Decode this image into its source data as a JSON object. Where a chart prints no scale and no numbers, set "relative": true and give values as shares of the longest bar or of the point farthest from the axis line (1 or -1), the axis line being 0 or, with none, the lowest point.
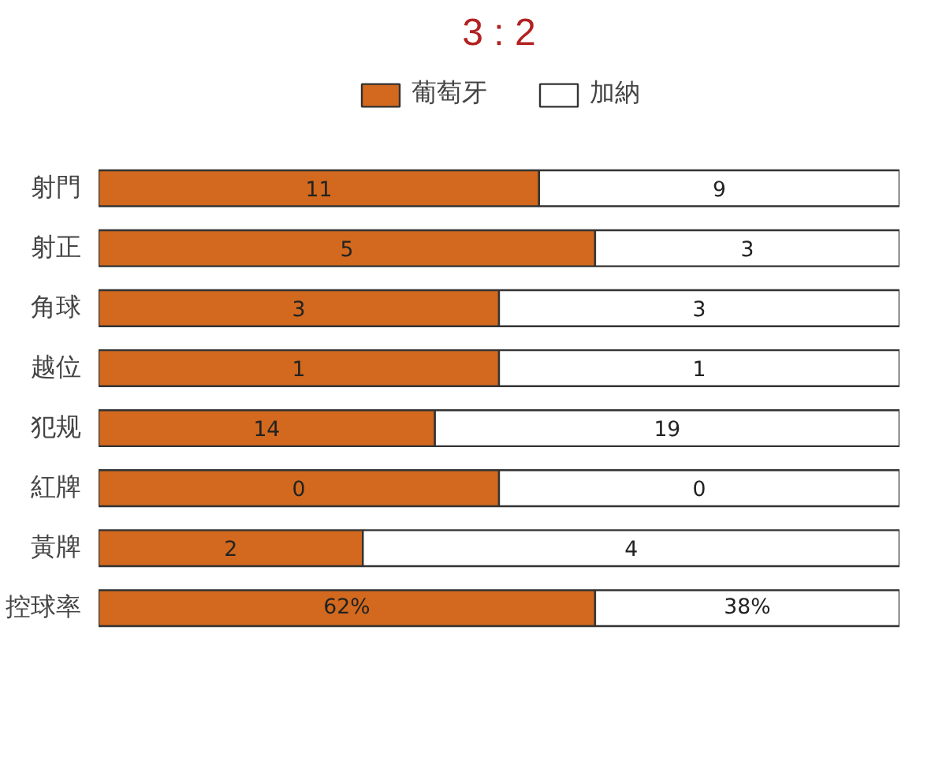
{
  "chart_data": {
    "type": "bar",
    "orientation": "horizontal",
    "stacked": true,
    "relative": true,
    "title": "3 : 2",
    "categories": [
      "射門",
      "射正",
      "角球",
      "越位",
      "犯规",
      "紅牌",
      "黃牌",
      "控球率"
    ],
    "series": [
      {
        "name": "葡萄牙",
        "color": "#d2691e",
        "values": [
          0.55,
          0.62,
          0.5,
          0.5,
          0.42,
          0.5,
          0.33,
          0.62
        ]
      },
      {
        "name": "加納",
        "color": "#ffffff",
        "values": [
          0.45,
          0.38,
          0.5,
          0.5,
          0.58,
          0.5,
          0.67,
          0.38
        ]
      }
    ],
    "annotations": [
      {
        "text": "11",
        "y": "射門"
      },
      {
        "text": "9",
        "y": "射門"
      },
      {
        "text": "5",
        "y": "射正"
      },
      {
        "text": "3",
        "y": "射正"
      },
      {
        "text": "3",
        "y": "角球"
      },
      {
        "text": "3",
        "y": "角球"
      },
      {
        "text": "1",
        "y": "越位"
      },
      {
        "text": "1",
        "y": "越位"
      },
      {
        "text": "14",
        "y": "犯规"
      },
      {
        "text": "19",
        "y": "犯规"
      },
      {
        "text": "0",
        "y": "紅牌"
      },
      {
        "text": "0",
        "y": "紅牌"
      },
      {
        "text": "2",
        "y": "黃牌"
      },
      {
        "text": "4",
        "y": "黃牌"
      },
      {
        "text": "62%",
        "y": "控球率"
      },
      {
        "text": "38%",
        "y": "控球率"
      }
    ],
    "legend": "top"
  }
}
